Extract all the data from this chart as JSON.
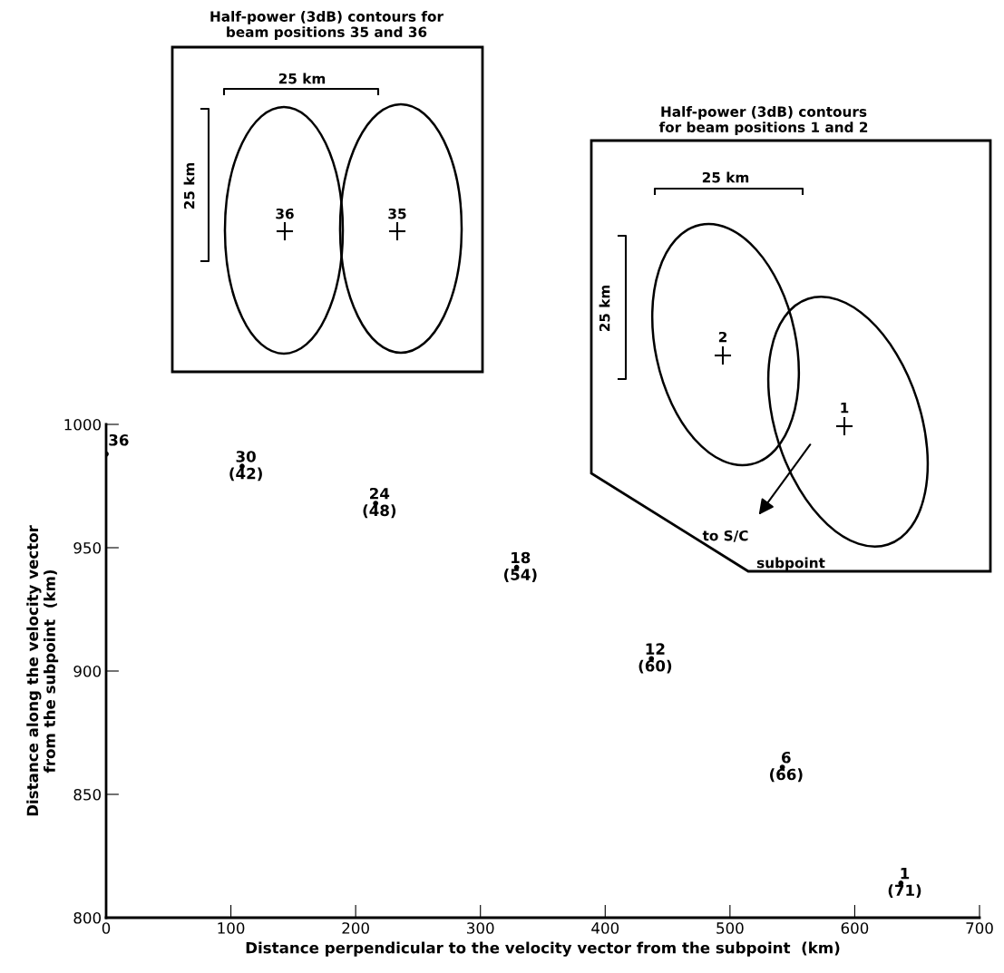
{
  "chart_data": {
    "type": "scatter",
    "xlabel": "Distance perpendicular to the velocity vector from the subpoint  (km)",
    "ylabel": "Distance along the velocity vector\nfrom the subpoint  (km)",
    "x": [
      0,
      109,
      216,
      329,
      437,
      542,
      637
    ],
    "series": [
      {
        "color": "#000000",
        "values": [
          988,
          983,
          968,
          942,
          905,
          861,
          814
        ]
      }
    ],
    "xlim": [
      0,
      700
    ],
    "ylim": [
      800,
      1000
    ],
    "xticks": [
      0,
      100,
      200,
      300,
      400,
      500,
      600,
      700
    ],
    "yticks": [
      800,
      850,
      900,
      950,
      1000
    ],
    "grid": false,
    "legend": false,
    "marker": "circle",
    "annotations": [
      "Half-power (3dB) contours for\nbeam positions 35 and 36",
      "25 km",
      "25 km",
      "36",
      "35",
      "Half-power (3dB) contours\nfor beam positions 1 and 2",
      "25 km",
      "25 km",
      "2",
      "1",
      "to S/C",
      "subpoint",
      {
        "text": "36",
        "x": 0,
        "y": 988
      },
      {
        "text": "30\n(42)",
        "x": 109,
        "y": 983
      },
      {
        "text": "24\n(48)",
        "x": 216,
        "y": 968
      },
      {
        "text": "18\n(54)",
        "x": 329,
        "y": 942
      },
      {
        "text": "12\n(60)",
        "x": 437,
        "y": 905
      },
      {
        "text": "6\n(66)",
        "x": 542,
        "y": 861
      },
      {
        "text": "1\n(71)",
        "x": 637,
        "y": 814
      }
    ]
  }
}
